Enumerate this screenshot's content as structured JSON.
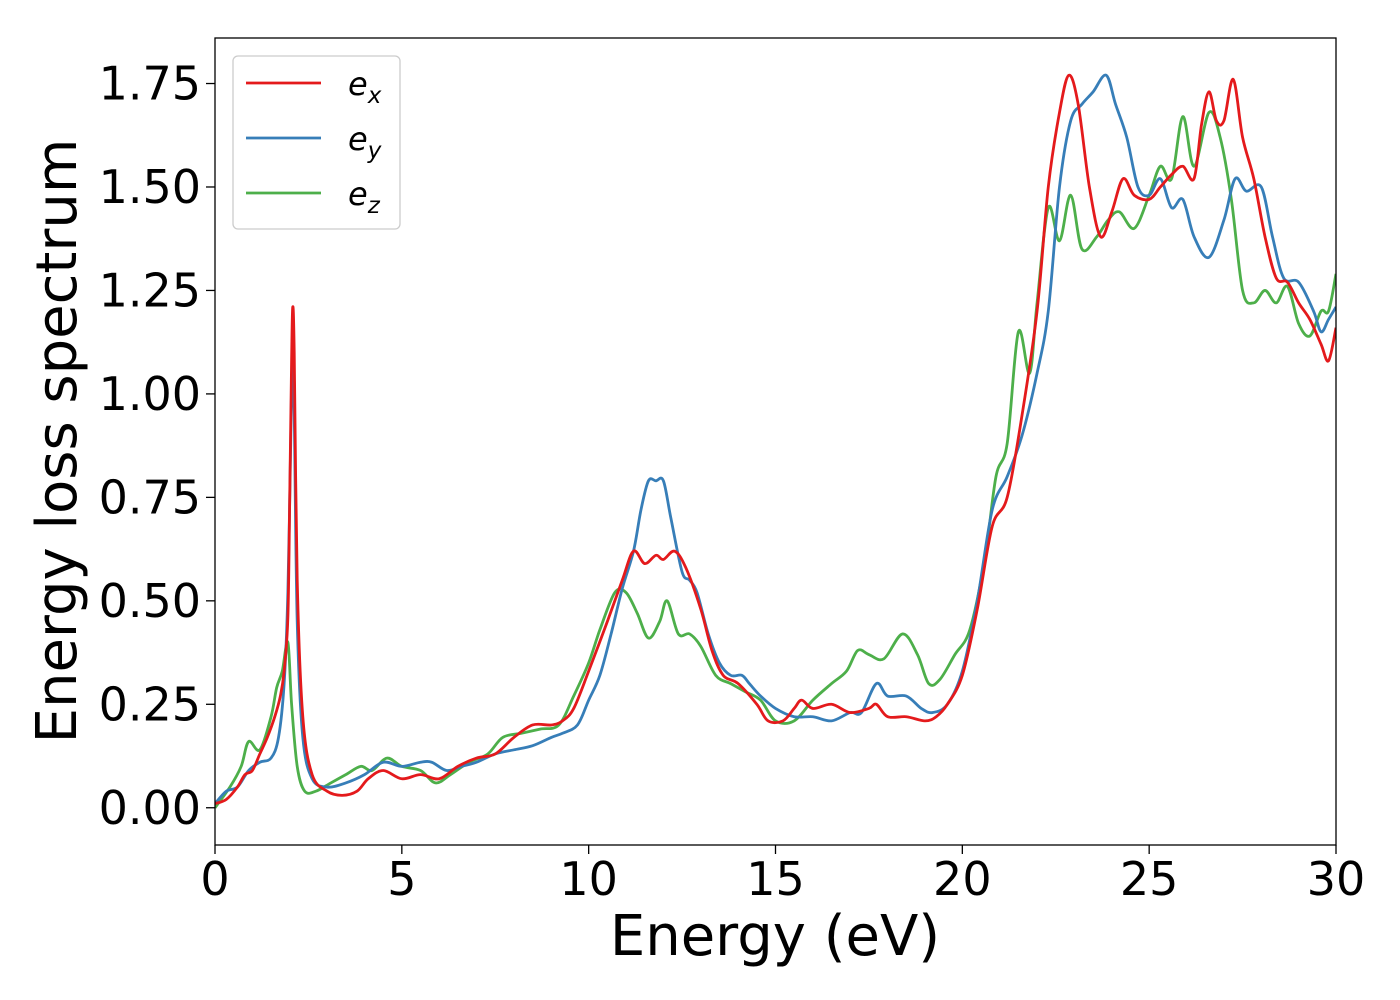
{
  "chart_data": {
    "type": "line",
    "title": "",
    "xlabel": "Energy (eV)",
    "ylabel": "Energy loss spectrum",
    "xlim": [
      0,
      30
    ],
    "ylim": [
      -0.09,
      1.86
    ],
    "xticks": [
      0,
      5,
      10,
      15,
      20,
      25,
      30
    ],
    "xtick_labels": [
      "0",
      "5",
      "10",
      "15",
      "20",
      "25",
      "30"
    ],
    "yticks": [
      0.0,
      0.25,
      0.5,
      0.75,
      1.0,
      1.25,
      1.5,
      1.75
    ],
    "ytick_labels": [
      "0.00",
      "0.25",
      "0.50",
      "0.75",
      "1.00",
      "1.25",
      "1.50",
      "1.75"
    ],
    "grid": false,
    "legend_position": "top-left",
    "series": [
      {
        "name": "e",
        "subscript": "x",
        "color": "#e41a1c",
        "points": [
          [
            0,
            0.01
          ],
          [
            0.3,
            0.02
          ],
          [
            0.6,
            0.05
          ],
          [
            0.8,
            0.08
          ],
          [
            1.0,
            0.09
          ],
          [
            1.2,
            0.13
          ],
          [
            1.4,
            0.17
          ],
          [
            1.6,
            0.22
          ],
          [
            1.75,
            0.27
          ],
          [
            1.85,
            0.33
          ],
          [
            1.95,
            0.46
          ],
          [
            2.0,
            0.75
          ],
          [
            2.05,
            1.08
          ],
          [
            2.08,
            1.21
          ],
          [
            2.12,
            1.1
          ],
          [
            2.2,
            0.55
          ],
          [
            2.35,
            0.22
          ],
          [
            2.6,
            0.08
          ],
          [
            3.0,
            0.04
          ],
          [
            3.4,
            0.03
          ],
          [
            3.8,
            0.04
          ],
          [
            4.1,
            0.07
          ],
          [
            4.5,
            0.09
          ],
          [
            5.0,
            0.07
          ],
          [
            5.5,
            0.08
          ],
          [
            6.0,
            0.07
          ],
          [
            6.5,
            0.1
          ],
          [
            7.0,
            0.12
          ],
          [
            7.5,
            0.13
          ],
          [
            8.0,
            0.17
          ],
          [
            8.5,
            0.2
          ],
          [
            9.0,
            0.2
          ],
          [
            9.3,
            0.21
          ],
          [
            9.6,
            0.24
          ],
          [
            10.0,
            0.33
          ],
          [
            10.5,
            0.45
          ],
          [
            10.9,
            0.55
          ],
          [
            11.2,
            0.62
          ],
          [
            11.5,
            0.59
          ],
          [
            11.8,
            0.61
          ],
          [
            12.0,
            0.6
          ],
          [
            12.3,
            0.62
          ],
          [
            12.6,
            0.58
          ],
          [
            13.0,
            0.48
          ],
          [
            13.3,
            0.38
          ],
          [
            13.6,
            0.32
          ],
          [
            14.0,
            0.3
          ],
          [
            14.5,
            0.25
          ],
          [
            14.8,
            0.21
          ],
          [
            15.2,
            0.21
          ],
          [
            15.5,
            0.24
          ],
          [
            15.7,
            0.26
          ],
          [
            16.0,
            0.24
          ],
          [
            16.5,
            0.25
          ],
          [
            17.0,
            0.23
          ],
          [
            17.5,
            0.24
          ],
          [
            17.7,
            0.25
          ],
          [
            18.0,
            0.22
          ],
          [
            18.5,
            0.22
          ],
          [
            19.0,
            0.21
          ],
          [
            19.3,
            0.22
          ],
          [
            19.6,
            0.25
          ],
          [
            20.0,
            0.32
          ],
          [
            20.4,
            0.48
          ],
          [
            20.8,
            0.68
          ],
          [
            21.2,
            0.75
          ],
          [
            21.6,
            0.95
          ],
          [
            22.0,
            1.2
          ],
          [
            22.3,
            1.5
          ],
          [
            22.6,
            1.68
          ],
          [
            22.85,
            1.77
          ],
          [
            23.1,
            1.7
          ],
          [
            23.4,
            1.5
          ],
          [
            23.7,
            1.38
          ],
          [
            24.0,
            1.44
          ],
          [
            24.3,
            1.52
          ],
          [
            24.6,
            1.48
          ],
          [
            25.0,
            1.47
          ],
          [
            25.3,
            1.5
          ],
          [
            25.6,
            1.53
          ],
          [
            25.9,
            1.55
          ],
          [
            26.2,
            1.52
          ],
          [
            26.4,
            1.65
          ],
          [
            26.6,
            1.73
          ],
          [
            26.8,
            1.66
          ],
          [
            27.0,
            1.66
          ],
          [
            27.25,
            1.76
          ],
          [
            27.5,
            1.62
          ],
          [
            27.8,
            1.52
          ],
          [
            28.1,
            1.38
          ],
          [
            28.4,
            1.28
          ],
          [
            28.7,
            1.27
          ],
          [
            29.0,
            1.22
          ],
          [
            29.3,
            1.18
          ],
          [
            29.6,
            1.12
          ],
          [
            29.8,
            1.08
          ],
          [
            30.0,
            1.16
          ]
        ]
      },
      {
        "name": "e",
        "subscript": "y",
        "color": "#377eb8",
        "points": [
          [
            0,
            0.01
          ],
          [
            0.3,
            0.04
          ],
          [
            0.6,
            0.05
          ],
          [
            0.9,
            0.09
          ],
          [
            1.2,
            0.11
          ],
          [
            1.5,
            0.12
          ],
          [
            1.7,
            0.17
          ],
          [
            1.85,
            0.3
          ],
          [
            1.95,
            0.52
          ],
          [
            2.02,
            0.85
          ],
          [
            2.07,
            1.09
          ],
          [
            2.12,
            0.95
          ],
          [
            2.2,
            0.45
          ],
          [
            2.35,
            0.17
          ],
          [
            2.6,
            0.07
          ],
          [
            3.0,
            0.05
          ],
          [
            3.5,
            0.06
          ],
          [
            4.0,
            0.08
          ],
          [
            4.5,
            0.11
          ],
          [
            5.0,
            0.1
          ],
          [
            5.5,
            0.11
          ],
          [
            5.8,
            0.11
          ],
          [
            6.2,
            0.09
          ],
          [
            6.6,
            0.1
          ],
          [
            7.0,
            0.11
          ],
          [
            7.5,
            0.13
          ],
          [
            8.0,
            0.14
          ],
          [
            8.5,
            0.15
          ],
          [
            9.0,
            0.17
          ],
          [
            9.3,
            0.18
          ],
          [
            9.7,
            0.2
          ],
          [
            10.0,
            0.26
          ],
          [
            10.3,
            0.32
          ],
          [
            10.6,
            0.42
          ],
          [
            10.9,
            0.53
          ],
          [
            11.2,
            0.62
          ],
          [
            11.4,
            0.72
          ],
          [
            11.6,
            0.79
          ],
          [
            11.8,
            0.79
          ],
          [
            12.0,
            0.79
          ],
          [
            12.2,
            0.7
          ],
          [
            12.5,
            0.57
          ],
          [
            12.7,
            0.55
          ],
          [
            12.9,
            0.52
          ],
          [
            13.2,
            0.42
          ],
          [
            13.5,
            0.35
          ],
          [
            13.8,
            0.32
          ],
          [
            14.1,
            0.32
          ],
          [
            14.3,
            0.3
          ],
          [
            14.6,
            0.27
          ],
          [
            15.0,
            0.24
          ],
          [
            15.5,
            0.22
          ],
          [
            16.0,
            0.22
          ],
          [
            16.5,
            0.21
          ],
          [
            17.0,
            0.23
          ],
          [
            17.3,
            0.23
          ],
          [
            17.7,
            0.3
          ],
          [
            18.0,
            0.27
          ],
          [
            18.5,
            0.27
          ],
          [
            18.9,
            0.24
          ],
          [
            19.2,
            0.23
          ],
          [
            19.6,
            0.25
          ],
          [
            20.0,
            0.33
          ],
          [
            20.4,
            0.5
          ],
          [
            20.8,
            0.72
          ],
          [
            21.2,
            0.8
          ],
          [
            21.6,
            0.9
          ],
          [
            22.0,
            1.05
          ],
          [
            22.3,
            1.2
          ],
          [
            22.6,
            1.5
          ],
          [
            22.9,
            1.66
          ],
          [
            23.2,
            1.7
          ],
          [
            23.5,
            1.73
          ],
          [
            23.85,
            1.77
          ],
          [
            24.1,
            1.7
          ],
          [
            24.4,
            1.62
          ],
          [
            24.7,
            1.5
          ],
          [
            25.0,
            1.48
          ],
          [
            25.3,
            1.52
          ],
          [
            25.6,
            1.45
          ],
          [
            25.9,
            1.47
          ],
          [
            26.2,
            1.38
          ],
          [
            26.6,
            1.33
          ],
          [
            27.0,
            1.42
          ],
          [
            27.3,
            1.52
          ],
          [
            27.6,
            1.49
          ],
          [
            28.0,
            1.5
          ],
          [
            28.3,
            1.38
          ],
          [
            28.6,
            1.28
          ],
          [
            29.0,
            1.27
          ],
          [
            29.4,
            1.2
          ],
          [
            29.6,
            1.15
          ],
          [
            29.8,
            1.18
          ],
          [
            30.0,
            1.21
          ]
        ]
      },
      {
        "name": "e",
        "subscript": "z",
        "color": "#4daf4a",
        "points": [
          [
            0,
            0.0
          ],
          [
            0.4,
            0.05
          ],
          [
            0.7,
            0.1
          ],
          [
            0.9,
            0.16
          ],
          [
            1.2,
            0.14
          ],
          [
            1.5,
            0.22
          ],
          [
            1.65,
            0.29
          ],
          [
            1.8,
            0.33
          ],
          [
            1.95,
            0.4
          ],
          [
            2.05,
            0.25
          ],
          [
            2.2,
            0.1
          ],
          [
            2.4,
            0.04
          ],
          [
            2.7,
            0.04
          ],
          [
            3.1,
            0.06
          ],
          [
            3.5,
            0.08
          ],
          [
            3.9,
            0.1
          ],
          [
            4.2,
            0.09
          ],
          [
            4.6,
            0.12
          ],
          [
            5.0,
            0.1
          ],
          [
            5.5,
            0.09
          ],
          [
            5.9,
            0.06
          ],
          [
            6.3,
            0.08
          ],
          [
            6.8,
            0.11
          ],
          [
            7.3,
            0.13
          ],
          [
            7.7,
            0.17
          ],
          [
            8.2,
            0.18
          ],
          [
            8.7,
            0.19
          ],
          [
            9.2,
            0.2
          ],
          [
            9.6,
            0.27
          ],
          [
            10.0,
            0.35
          ],
          [
            10.3,
            0.43
          ],
          [
            10.7,
            0.52
          ],
          [
            11.0,
            0.52
          ],
          [
            11.3,
            0.47
          ],
          [
            11.6,
            0.41
          ],
          [
            11.9,
            0.45
          ],
          [
            12.1,
            0.5
          ],
          [
            12.4,
            0.42
          ],
          [
            12.7,
            0.42
          ],
          [
            13.0,
            0.39
          ],
          [
            13.4,
            0.32
          ],
          [
            13.8,
            0.3
          ],
          [
            14.2,
            0.28
          ],
          [
            14.6,
            0.26
          ],
          [
            15.0,
            0.21
          ],
          [
            15.5,
            0.21
          ],
          [
            16.0,
            0.26
          ],
          [
            16.5,
            0.3
          ],
          [
            16.9,
            0.33
          ],
          [
            17.2,
            0.38
          ],
          [
            17.5,
            0.37
          ],
          [
            17.9,
            0.36
          ],
          [
            18.4,
            0.42
          ],
          [
            18.8,
            0.37
          ],
          [
            19.1,
            0.3
          ],
          [
            19.4,
            0.31
          ],
          [
            19.8,
            0.37
          ],
          [
            20.2,
            0.43
          ],
          [
            20.6,
            0.6
          ],
          [
            20.9,
            0.8
          ],
          [
            21.2,
            0.88
          ],
          [
            21.5,
            1.15
          ],
          [
            21.8,
            1.05
          ],
          [
            22.0,
            1.22
          ],
          [
            22.3,
            1.45
          ],
          [
            22.6,
            1.37
          ],
          [
            22.9,
            1.48
          ],
          [
            23.2,
            1.35
          ],
          [
            23.6,
            1.38
          ],
          [
            23.9,
            1.42
          ],
          [
            24.2,
            1.44
          ],
          [
            24.6,
            1.4
          ],
          [
            25.0,
            1.48
          ],
          [
            25.3,
            1.55
          ],
          [
            25.6,
            1.52
          ],
          [
            25.9,
            1.67
          ],
          [
            26.2,
            1.55
          ],
          [
            26.6,
            1.68
          ],
          [
            26.9,
            1.62
          ],
          [
            27.2,
            1.47
          ],
          [
            27.5,
            1.25
          ],
          [
            27.8,
            1.22
          ],
          [
            28.1,
            1.25
          ],
          [
            28.4,
            1.22
          ],
          [
            28.7,
            1.26
          ],
          [
            29.0,
            1.17
          ],
          [
            29.3,
            1.14
          ],
          [
            29.6,
            1.2
          ],
          [
            29.8,
            1.2
          ],
          [
            30.0,
            1.29
          ]
        ]
      }
    ]
  }
}
